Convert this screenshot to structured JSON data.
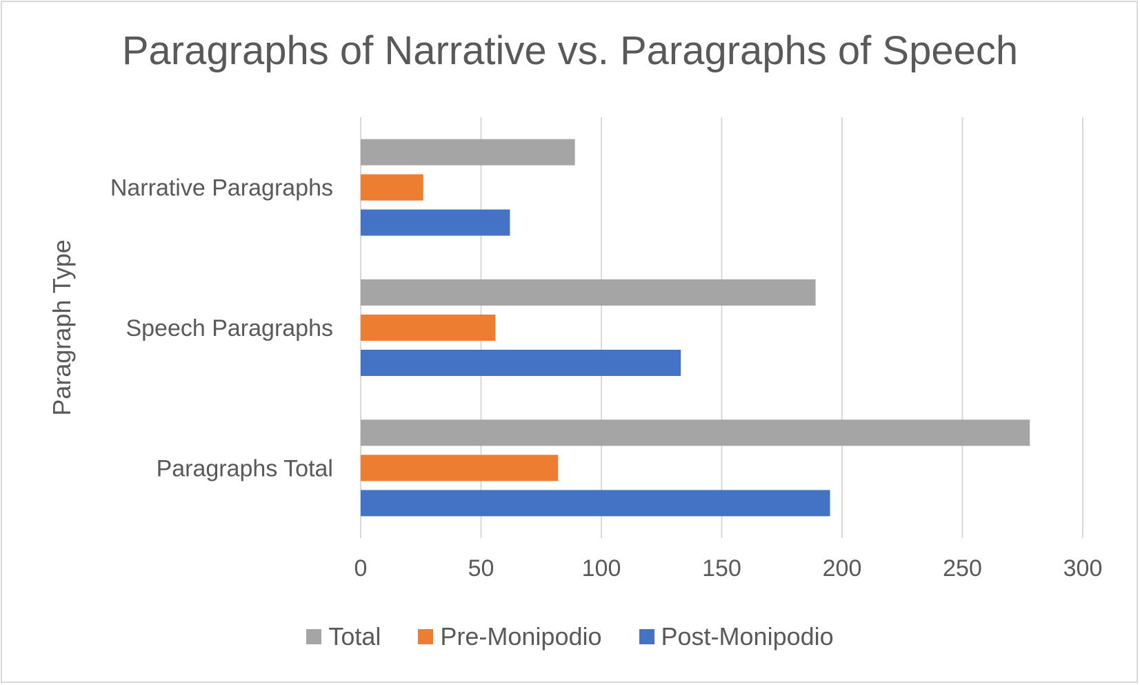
{
  "chart_data": {
    "type": "bar",
    "orientation": "horizontal",
    "title": "Paragraphs of Narrative vs. Paragraphs of Speech",
    "ylabel": "Paragraph Type",
    "xlabel": "",
    "categories": [
      "Narrative Paragraphs",
      "Speech Paragraphs",
      "Paragraphs Total"
    ],
    "series": [
      {
        "name": "Total",
        "color": "#a5a5a5",
        "values": [
          89,
          189,
          278
        ]
      },
      {
        "name": "Pre-Monipodio",
        "color": "#ed7d31",
        "values": [
          26,
          56,
          82
        ]
      },
      {
        "name": "Post-Monipodio",
        "color": "#4472c4",
        "values": [
          62,
          133,
          195
        ]
      }
    ],
    "xlim": [
      0,
      300
    ],
    "xticks": [
      "0",
      "50",
      "100",
      "150",
      "200",
      "250",
      "300"
    ],
    "grid": true,
    "legend_position": "bottom"
  }
}
